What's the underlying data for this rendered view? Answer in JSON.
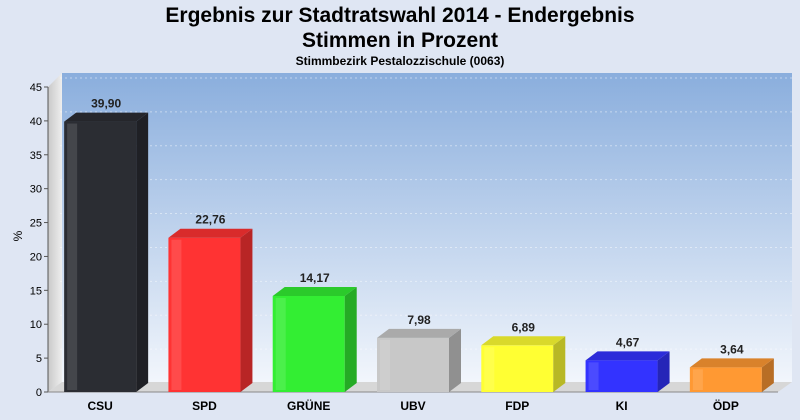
{
  "chart_data": {
    "type": "bar",
    "title": "Ergebnis zur Stadtratswahl 2014 - Endergebnis",
    "title_line2": "Stimmen in Prozent",
    "subtitle": "Stimmbezirk Pestalozzischule (0063)",
    "ylabel": "%",
    "xlabel": "",
    "ylim": [
      0,
      45
    ],
    "yticks": [
      0,
      5,
      10,
      15,
      20,
      25,
      30,
      35,
      40,
      45
    ],
    "grid": true,
    "legend": "none",
    "categories": [
      "CSU",
      "SPD",
      "GRÜNE",
      "UBV",
      "FDP",
      "KI",
      "ÖDP"
    ],
    "values": [
      39.9,
      22.76,
      14.17,
      7.98,
      6.89,
      4.67,
      3.64
    ],
    "value_labels": [
      "39,90",
      "22,76",
      "14,17",
      "7,98",
      "6,89",
      "4,67",
      "3,64"
    ],
    "colors": [
      "#2b2d33",
      "#ff3333",
      "#33ee33",
      "#c8c8c8",
      "#ffff33",
      "#3333ff",
      "#ff9933"
    ]
  }
}
